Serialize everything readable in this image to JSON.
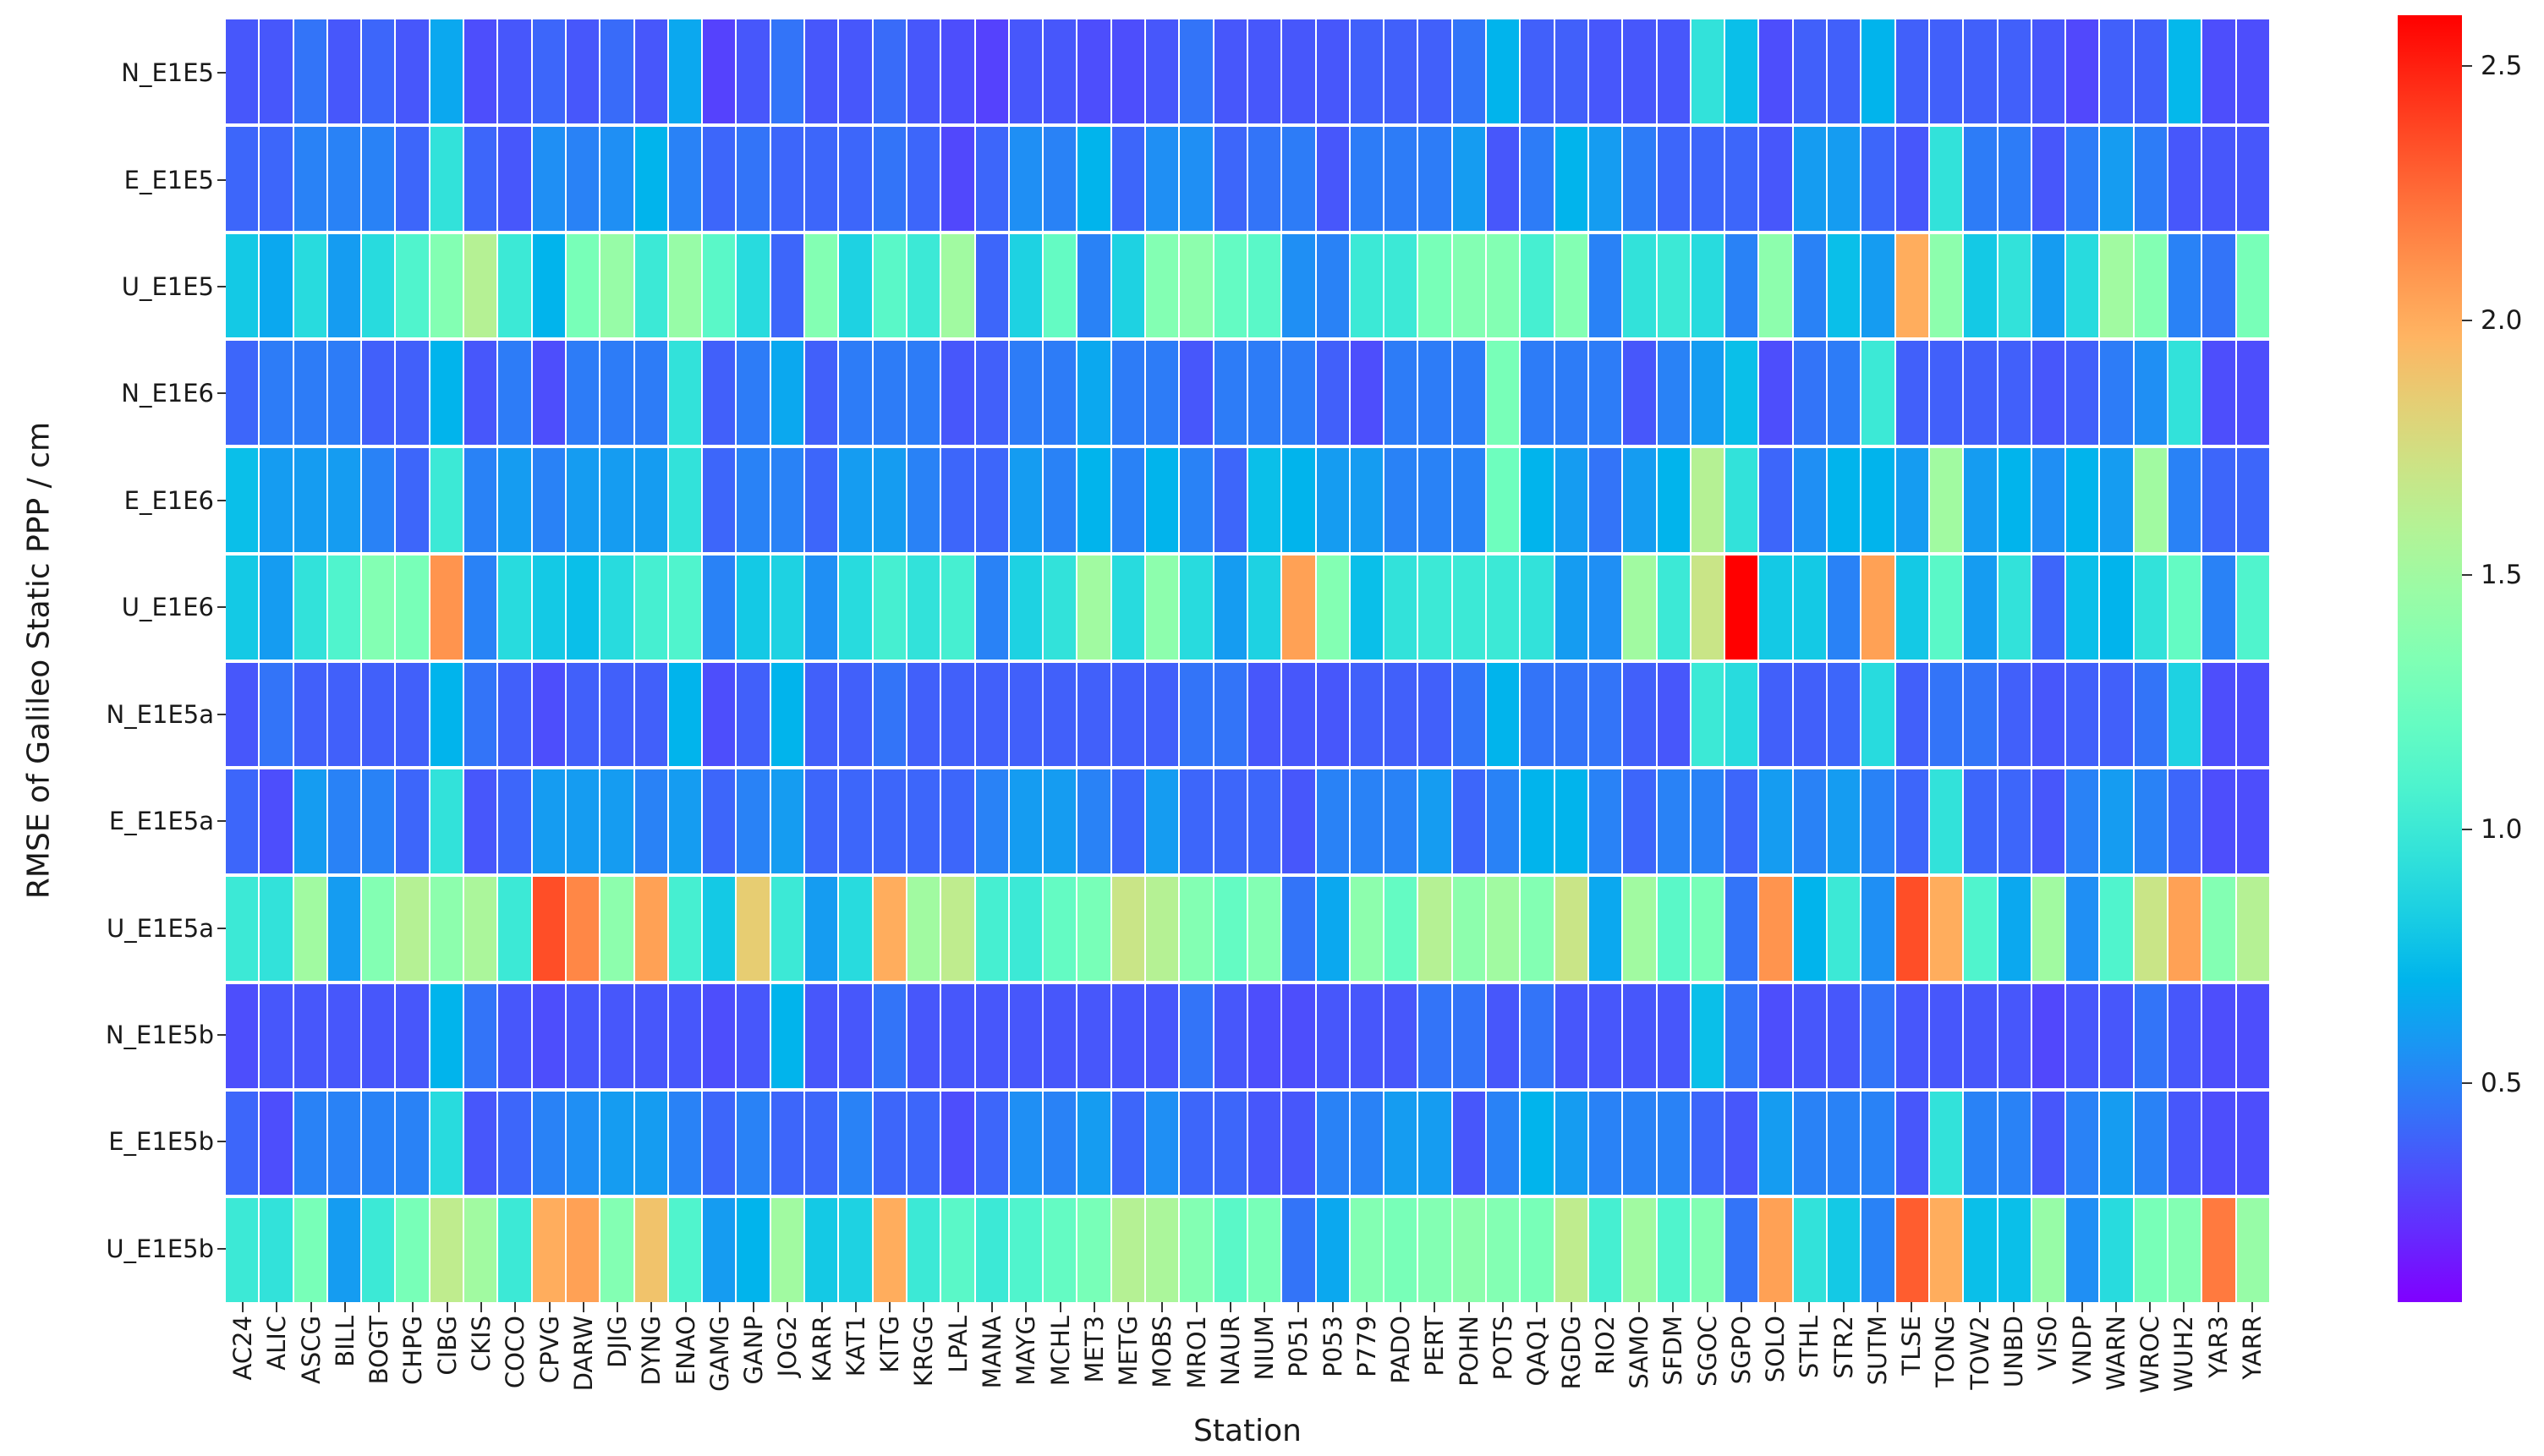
{
  "figure": {
    "xlabel": "Station",
    "ylabel": "RMSE of Galileo Static PPP / cm"
  },
  "chart_data": {
    "type": "heatmap",
    "title": "",
    "xlabel": "Station",
    "ylabel": "RMSE of Galileo Static PPP / cm",
    "colormap": "rainbow",
    "vmin": 0.07,
    "vmax": 2.6,
    "colorbar_ticks": [
      0.5,
      1.0,
      1.5,
      2.0,
      2.5
    ],
    "legend_position": "right-colorbar",
    "grid": false,
    "x_categories": [
      "AC24",
      "ALIC",
      "ASCG",
      "BILL",
      "BOGT",
      "CHPG",
      "CIBG",
      "CKIS",
      "COCO",
      "CPVG",
      "DARW",
      "DJIG",
      "DYNG",
      "ENAO",
      "GAMG",
      "GANP",
      "JOG2",
      "KARR",
      "KAT1",
      "KITG",
      "KRGG",
      "LPAL",
      "MANA",
      "MAYG",
      "MCHL",
      "MET3",
      "METG",
      "MOBS",
      "MRO1",
      "NAUR",
      "NIUM",
      "P051",
      "P053",
      "P779",
      "PADO",
      "PERT",
      "POHN",
      "POTS",
      "QAQ1",
      "RGDG",
      "RIO2",
      "SAMO",
      "SFDM",
      "SGOC",
      "SGPO",
      "SOLO",
      "STHL",
      "STR2",
      "SUTM",
      "TLSE",
      "TONG",
      "TOW2",
      "UNBD",
      "VIS0",
      "VNDP",
      "WARN",
      "WROC",
      "WUH2",
      "YAR3",
      "YARR"
    ],
    "y_categories": [
      "N_E1E5",
      "E_E1E5",
      "U_E1E5",
      "N_E1E6",
      "E_E1E6",
      "U_E1E6",
      "N_E1E5a",
      "E_E1E5a",
      "U_E1E5a",
      "N_E1E5b",
      "E_E1E5b",
      "U_E1E5b"
    ],
    "values": [
      [
        0.35,
        0.35,
        0.45,
        0.35,
        0.4,
        0.35,
        0.65,
        0.32,
        0.35,
        0.4,
        0.35,
        0.42,
        0.35,
        0.65,
        0.28,
        0.35,
        0.45,
        0.35,
        0.35,
        0.42,
        0.35,
        0.32,
        0.28,
        0.35,
        0.35,
        0.32,
        0.32,
        0.35,
        0.45,
        0.35,
        0.35,
        0.35,
        0.35,
        0.38,
        0.38,
        0.38,
        0.45,
        0.7,
        0.38,
        0.38,
        0.35,
        0.35,
        0.35,
        0.95,
        0.75,
        0.32,
        0.38,
        0.38,
        0.7,
        0.38,
        0.38,
        0.38,
        0.38,
        0.35,
        0.3,
        0.38,
        0.38,
        0.72,
        0.32,
        0.32
      ],
      [
        0.4,
        0.4,
        0.5,
        0.5,
        0.5,
        0.4,
        0.95,
        0.4,
        0.35,
        0.55,
        0.5,
        0.55,
        0.7,
        0.5,
        0.4,
        0.45,
        0.4,
        0.4,
        0.4,
        0.45,
        0.4,
        0.3,
        0.4,
        0.55,
        0.5,
        0.7,
        0.4,
        0.55,
        0.55,
        0.4,
        0.45,
        0.48,
        0.35,
        0.48,
        0.48,
        0.48,
        0.6,
        0.35,
        0.48,
        0.7,
        0.6,
        0.48,
        0.4,
        0.4,
        0.4,
        0.35,
        0.6,
        0.6,
        0.4,
        0.35,
        0.95,
        0.48,
        0.48,
        0.35,
        0.48,
        0.6,
        0.48,
        0.35,
        0.35,
        0.35
      ],
      [
        0.8,
        0.65,
        0.9,
        0.6,
        0.9,
        1.1,
        1.35,
        1.6,
        1.0,
        0.7,
        1.3,
        1.45,
        1.0,
        1.45,
        1.15,
        0.9,
        0.4,
        1.35,
        0.85,
        1.15,
        1.0,
        1.5,
        0.4,
        0.85,
        1.2,
        0.5,
        0.85,
        1.35,
        1.4,
        1.2,
        1.15,
        0.55,
        0.5,
        1.0,
        1.0,
        1.3,
        1.35,
        1.35,
        1.05,
        1.35,
        0.5,
        0.95,
        1.0,
        0.9,
        0.5,
        1.4,
        0.5,
        0.75,
        0.6,
        2.0,
        1.4,
        0.8,
        0.95,
        0.6,
        0.9,
        1.5,
        1.35,
        0.5,
        0.45,
        1.3
      ],
      [
        0.4,
        0.48,
        0.48,
        0.48,
        0.38,
        0.38,
        0.7,
        0.35,
        0.48,
        0.32,
        0.48,
        0.48,
        0.48,
        0.95,
        0.38,
        0.48,
        0.65,
        0.38,
        0.48,
        0.48,
        0.48,
        0.35,
        0.38,
        0.48,
        0.48,
        0.65,
        0.48,
        0.48,
        0.35,
        0.48,
        0.48,
        0.48,
        0.38,
        0.32,
        0.48,
        0.48,
        0.48,
        1.3,
        0.48,
        0.48,
        0.48,
        0.35,
        0.5,
        0.6,
        0.75,
        0.32,
        0.45,
        0.48,
        1.0,
        0.38,
        0.38,
        0.38,
        0.38,
        0.35,
        0.38,
        0.48,
        0.55,
        0.95,
        0.32,
        0.32
      ],
      [
        0.75,
        0.6,
        0.6,
        0.6,
        0.5,
        0.4,
        1.0,
        0.5,
        0.6,
        0.5,
        0.6,
        0.6,
        0.6,
        0.95,
        0.4,
        0.5,
        0.5,
        0.4,
        0.6,
        0.6,
        0.5,
        0.4,
        0.4,
        0.6,
        0.5,
        0.7,
        0.5,
        0.7,
        0.5,
        0.4,
        0.75,
        0.7,
        0.6,
        0.6,
        0.5,
        0.5,
        0.5,
        1.25,
        0.7,
        0.6,
        0.45,
        0.6,
        0.7,
        1.6,
        0.95,
        0.4,
        0.55,
        0.7,
        0.7,
        0.6,
        1.5,
        0.6,
        0.7,
        0.55,
        0.7,
        0.6,
        1.5,
        0.5,
        0.4,
        0.4
      ],
      [
        0.8,
        0.6,
        0.95,
        1.1,
        1.35,
        1.3,
        2.1,
        0.5,
        0.9,
        0.8,
        0.75,
        0.9,
        1.05,
        1.1,
        0.5,
        0.8,
        0.85,
        0.55,
        0.9,
        1.05,
        0.95,
        1.05,
        0.5,
        0.85,
        0.95,
        1.5,
        0.9,
        1.4,
        0.9,
        0.6,
        0.85,
        2.05,
        1.35,
        0.75,
        0.95,
        1.0,
        1.0,
        1.0,
        0.95,
        0.6,
        0.55,
        1.5,
        1.0,
        1.7,
        2.6,
        0.8,
        0.8,
        0.5,
        2.05,
        0.8,
        1.15,
        0.6,
        0.95,
        0.4,
        0.75,
        0.7,
        0.95,
        1.2,
        0.5,
        1.1
      ],
      [
        0.35,
        0.45,
        0.38,
        0.38,
        0.38,
        0.38,
        0.7,
        0.45,
        0.38,
        0.32,
        0.38,
        0.38,
        0.38,
        0.7,
        0.32,
        0.38,
        0.7,
        0.38,
        0.38,
        0.45,
        0.38,
        0.38,
        0.38,
        0.38,
        0.38,
        0.38,
        0.38,
        0.38,
        0.45,
        0.45,
        0.35,
        0.35,
        0.35,
        0.38,
        0.38,
        0.38,
        0.45,
        0.7,
        0.45,
        0.45,
        0.45,
        0.38,
        0.35,
        1.0,
        0.9,
        0.38,
        0.38,
        0.4,
        0.9,
        0.38,
        0.45,
        0.45,
        0.38,
        0.35,
        0.38,
        0.38,
        0.45,
        0.85,
        0.32,
        0.32
      ],
      [
        0.4,
        0.32,
        0.6,
        0.5,
        0.5,
        0.4,
        0.95,
        0.35,
        0.4,
        0.6,
        0.6,
        0.6,
        0.5,
        0.6,
        0.4,
        0.5,
        0.6,
        0.4,
        0.4,
        0.4,
        0.4,
        0.4,
        0.5,
        0.6,
        0.6,
        0.5,
        0.4,
        0.6,
        0.4,
        0.4,
        0.4,
        0.35,
        0.5,
        0.5,
        0.5,
        0.6,
        0.4,
        0.5,
        0.7,
        0.7,
        0.5,
        0.4,
        0.5,
        0.5,
        0.4,
        0.6,
        0.5,
        0.6,
        0.5,
        0.4,
        0.95,
        0.4,
        0.4,
        0.35,
        0.5,
        0.6,
        0.5,
        0.4,
        0.32,
        0.32
      ],
      [
        1.0,
        0.95,
        1.5,
        0.6,
        1.35,
        1.6,
        1.4,
        1.55,
        1.0,
        2.35,
        2.15,
        1.4,
        2.05,
        1.05,
        0.8,
        1.85,
        1.0,
        0.6,
        0.9,
        2.0,
        1.5,
        1.65,
        1.05,
        1.0,
        1.2,
        1.3,
        1.7,
        1.6,
        1.35,
        1.2,
        1.35,
        0.45,
        0.65,
        1.4,
        1.2,
        1.6,
        1.4,
        1.5,
        1.35,
        1.7,
        0.65,
        1.5,
        1.15,
        1.3,
        0.45,
        2.1,
        0.7,
        1.0,
        0.55,
        2.35,
        2.0,
        1.1,
        0.65,
        1.5,
        0.55,
        1.1,
        1.7,
        2.05,
        1.35,
        1.6
      ],
      [
        0.32,
        0.35,
        0.35,
        0.35,
        0.35,
        0.35,
        0.7,
        0.45,
        0.35,
        0.32,
        0.35,
        0.35,
        0.35,
        0.35,
        0.32,
        0.35,
        0.7,
        0.35,
        0.35,
        0.45,
        0.35,
        0.35,
        0.35,
        0.35,
        0.35,
        0.35,
        0.35,
        0.35,
        0.45,
        0.35,
        0.32,
        0.32,
        0.35,
        0.35,
        0.35,
        0.45,
        0.45,
        0.35,
        0.45,
        0.35,
        0.35,
        0.35,
        0.35,
        0.75,
        0.45,
        0.32,
        0.35,
        0.35,
        0.45,
        0.35,
        0.35,
        0.35,
        0.35,
        0.3,
        0.35,
        0.35,
        0.45,
        0.35,
        0.32,
        0.32
      ],
      [
        0.4,
        0.32,
        0.5,
        0.5,
        0.5,
        0.5,
        0.9,
        0.35,
        0.4,
        0.5,
        0.55,
        0.6,
        0.6,
        0.5,
        0.4,
        0.5,
        0.4,
        0.4,
        0.5,
        0.4,
        0.4,
        0.32,
        0.4,
        0.55,
        0.5,
        0.6,
        0.4,
        0.55,
        0.4,
        0.4,
        0.35,
        0.35,
        0.5,
        0.5,
        0.6,
        0.6,
        0.35,
        0.5,
        0.7,
        0.6,
        0.5,
        0.5,
        0.5,
        0.4,
        0.35,
        0.6,
        0.5,
        0.5,
        0.5,
        0.35,
        0.95,
        0.5,
        0.5,
        0.35,
        0.5,
        0.6,
        0.5,
        0.35,
        0.32,
        0.32
      ],
      [
        1.0,
        0.95,
        1.3,
        0.6,
        1.0,
        1.3,
        1.65,
        1.5,
        1.0,
        2.0,
        2.05,
        1.35,
        1.9,
        1.1,
        0.6,
        0.7,
        1.5,
        0.8,
        0.85,
        2.0,
        1.0,
        1.15,
        1.0,
        1.1,
        1.2,
        1.3,
        1.6,
        1.55,
        1.35,
        1.15,
        1.3,
        0.45,
        0.65,
        1.35,
        1.3,
        1.35,
        1.4,
        1.35,
        1.3,
        1.65,
        1.05,
        1.5,
        1.1,
        1.35,
        0.45,
        2.05,
        0.95,
        0.8,
        0.5,
        2.3,
        2.0,
        0.75,
        0.75,
        1.45,
        0.55,
        0.9,
        1.3,
        1.35,
        2.2,
        1.45
      ]
    ]
  }
}
